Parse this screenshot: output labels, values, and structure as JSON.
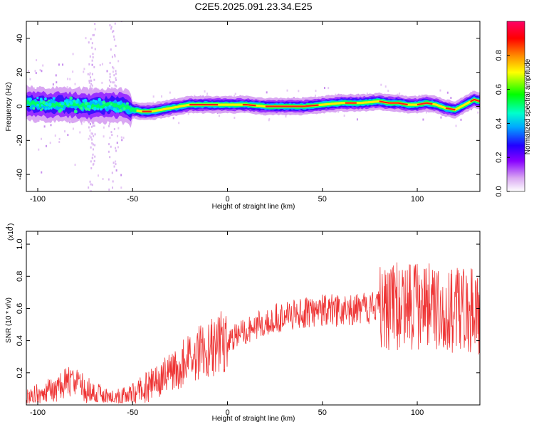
{
  "figure": {
    "title": "C2E5.2025.091.23.34.E25"
  },
  "chart_data": [
    {
      "type": "heatmap",
      "title": "C2E5.2025.091.23.34.E25",
      "xlabel": "Height of straight line (km)",
      "ylabel": "Frequency (Hz)",
      "xlim": [
        -106,
        133
      ],
      "ylim": [
        -50,
        50
      ],
      "x_ticks": [
        -100,
        -50,
        0,
        50,
        100
      ],
      "y_ticks": [
        -40,
        -20,
        0,
        20,
        40
      ],
      "grid": false,
      "colorbar": {
        "label": "Normalized spectral amplitude",
        "range": [
          0,
          1
        ],
        "ticks": [
          "0.0",
          "0.2",
          "0.4",
          "0.6",
          "0.8"
        ],
        "colors": [
          "#ffffff",
          "#d9a6f2",
          "#8800ff",
          "#2200ff",
          "#00aaff",
          "#00ffcc",
          "#00ff00",
          "#ffff00",
          "#ff8800",
          "#ff0000",
          "#ff0066"
        ]
      },
      "ridge_center": {
        "x": [
          -106,
          -100,
          -90,
          -80,
          -70,
          -60,
          -55,
          -50,
          -45,
          -40,
          -35,
          -30,
          -25,
          -20,
          -10,
          0,
          10,
          20,
          30,
          40,
          50,
          60,
          70,
          80,
          85,
          90,
          95,
          100,
          105,
          110,
          115,
          120,
          125,
          130,
          133
        ],
        "y": [
          2,
          1,
          1,
          1,
          0,
          1,
          0,
          -2,
          -3,
          -3,
          -2,
          -1,
          0,
          1,
          1,
          1,
          1,
          0,
          0,
          0,
          1,
          2,
          2,
          3,
          2,
          2,
          1,
          1,
          2,
          1,
          -1,
          -2,
          1,
          4,
          3
        ]
      }
    },
    {
      "type": "line",
      "xlabel": "Height of straight line (km)",
      "ylabel": "SNR (10 * v/v)",
      "y_multiplier": "(x10",
      "y_multiplier_exp": "4",
      "xlim": [
        -106,
        133
      ],
      "ylim": [
        0,
        1.08
      ],
      "x_ticks": [
        -100,
        -50,
        0,
        50,
        100
      ],
      "y_ticks": [
        0.2,
        0.4,
        0.6,
        0.8,
        1.0
      ],
      "grid": false,
      "color": "#ee3333",
      "series": [
        {
          "x": [
            -106,
            -100,
            -90,
            -85,
            -80,
            -75,
            -70,
            -65,
            -60,
            -55,
            -50,
            -45,
            -40,
            -35,
            -30,
            -25,
            -20,
            -15,
            -10,
            -5,
            0,
            5,
            10,
            15,
            20,
            25,
            30,
            35,
            40,
            45,
            50,
            55,
            60,
            65,
            70,
            75,
            80,
            85,
            90,
            95,
            100,
            105,
            110,
            115,
            120,
            125,
            130,
            133
          ],
          "values": [
            0.03,
            0.06,
            0.1,
            0.14,
            0.15,
            0.1,
            0.07,
            0.05,
            0.04,
            0.04,
            0.06,
            0.09,
            0.13,
            0.17,
            0.2,
            0.25,
            0.29,
            0.32,
            0.35,
            0.38,
            0.4,
            0.43,
            0.46,
            0.49,
            0.52,
            0.54,
            0.55,
            0.56,
            0.57,
            0.58,
            0.59,
            0.59,
            0.58,
            0.59,
            0.6,
            0.6,
            0.61,
            0.62,
            0.62,
            0.61,
            0.6,
            0.6,
            0.62,
            0.6,
            0.59,
            0.58,
            0.58,
            0.58
          ]
        }
      ]
    }
  ]
}
